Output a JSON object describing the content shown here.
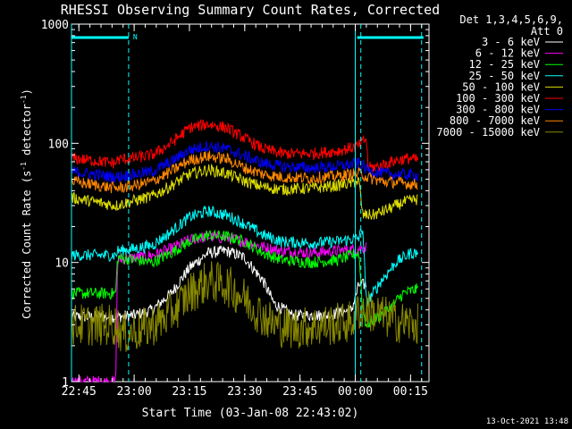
{
  "chart_data": {
    "type": "line",
    "title": "RHESSI Observing Summary Count Rates, Corrected",
    "xlabel": "Start Time (03-Jan-08 22:43:02)",
    "ylabel": "Corrected Count Rate (s⁻¹ detector⁻¹)",
    "ylabel_parts": [
      "Corrected Count Rate (s",
      "-1",
      " detector",
      "-1",
      ")"
    ],
    "yscale": "log",
    "ylim": [
      1,
      1000
    ],
    "xlim_minutes": [
      0,
      97
    ],
    "x_ticks": [
      {
        "label": "22:45",
        "min": 2
      },
      {
        "label": "23:00",
        "min": 17
      },
      {
        "label": "23:15",
        "min": 32
      },
      {
        "label": "23:30",
        "min": 47
      },
      {
        "label": "23:45",
        "min": 62
      },
      {
        "label": "00:00",
        "min": 77
      },
      {
        "label": "00:15",
        "min": 92
      }
    ],
    "y_ticks": [
      {
        "label": "1",
        "v": 1
      },
      {
        "label": "10",
        "v": 10
      },
      {
        "label": "100",
        "v": 100
      },
      {
        "label": "1000",
        "v": 1000
      }
    ],
    "legend_header": [
      "Det 1,3,4,5,6,9,",
      "Att 0"
    ],
    "series": [
      {
        "name": "3 - 6 keV",
        "color": "#ffffff",
        "points": [
          [
            0,
            3.5
          ],
          [
            12,
            3.5
          ],
          [
            17,
            3.6
          ],
          [
            22,
            4
          ],
          [
            27,
            5.5
          ],
          [
            32,
            9
          ],
          [
            37,
            12
          ],
          [
            42,
            12.5
          ],
          [
            47,
            11
          ],
          [
            52,
            7
          ],
          [
            55,
            4.5
          ],
          [
            60,
            3.6
          ],
          [
            70,
            3.6
          ],
          [
            76,
            4
          ],
          [
            78,
            6.5
          ],
          [
            80,
            6.5
          ]
        ]
      },
      {
        "name": "6 - 12 keV",
        "color": "#ff00ff",
        "points": [
          [
            0,
            1
          ],
          [
            12,
            1
          ],
          [
            12.5,
            10.5
          ],
          [
            17,
            11
          ],
          [
            22,
            11.5
          ],
          [
            27,
            13
          ],
          [
            32,
            15.5
          ],
          [
            37,
            16.5
          ],
          [
            42,
            16
          ],
          [
            47,
            15
          ],
          [
            52,
            13.5
          ],
          [
            57,
            12.5
          ],
          [
            65,
            12
          ],
          [
            72,
            12.5
          ],
          [
            78,
            13
          ],
          [
            80,
            13.5
          ]
        ]
      },
      {
        "name": "12 - 25 keV",
        "color": "#00ff00",
        "points": [
          [
            0,
            5.5
          ],
          [
            12,
            5.5
          ],
          [
            12.5,
            11
          ],
          [
            17,
            10.5
          ],
          [
            22,
            10
          ],
          [
            27,
            12
          ],
          [
            32,
            15
          ],
          [
            37,
            17
          ],
          [
            42,
            16.5
          ],
          [
            47,
            15
          ],
          [
            52,
            12
          ],
          [
            57,
            10.5
          ],
          [
            65,
            10
          ],
          [
            72,
            10.5
          ],
          [
            78,
            12
          ],
          [
            79,
            4
          ],
          [
            80,
            3
          ],
          [
            86,
            4
          ],
          [
            90,
            5.5
          ],
          [
            94,
            6
          ]
        ]
      },
      {
        "name": "25 - 50 keV",
        "color": "#00ffff",
        "points": [
          [
            0,
            11.5
          ],
          [
            12,
            11.5
          ],
          [
            12.5,
            12.5
          ],
          [
            17,
            13
          ],
          [
            22,
            14
          ],
          [
            27,
            18
          ],
          [
            32,
            24
          ],
          [
            37,
            27
          ],
          [
            42,
            25
          ],
          [
            47,
            21
          ],
          [
            52,
            17
          ],
          [
            57,
            15
          ],
          [
            65,
            14.5
          ],
          [
            72,
            15
          ],
          [
            78,
            16
          ],
          [
            79,
            20
          ],
          [
            80,
            4.5
          ],
          [
            84,
            7
          ],
          [
            88,
            10
          ],
          [
            92,
            12
          ],
          [
            94,
            12
          ]
        ]
      },
      {
        "name": "50 - 100 keV",
        "color": "#dddd00",
        "points": [
          [
            0,
            35
          ],
          [
            12,
            30
          ],
          [
            17,
            33
          ],
          [
            22,
            36
          ],
          [
            27,
            44
          ],
          [
            32,
            55
          ],
          [
            37,
            60
          ],
          [
            42,
            56
          ],
          [
            47,
            48
          ],
          [
            52,
            43
          ],
          [
            57,
            41
          ],
          [
            65,
            42
          ],
          [
            72,
            44
          ],
          [
            78,
            48
          ],
          [
            79,
            25
          ],
          [
            82,
            25
          ],
          [
            86,
            28
          ],
          [
            90,
            32
          ],
          [
            94,
            34
          ]
        ]
      },
      {
        "name": "100 - 300 keV",
        "color": "#ff0000",
        "points": [
          [
            0,
            75
          ],
          [
            12,
            68
          ],
          [
            12.5,
            73
          ],
          [
            17,
            75
          ],
          [
            22,
            80
          ],
          [
            27,
            100
          ],
          [
            32,
            135
          ],
          [
            37,
            145
          ],
          [
            42,
            135
          ],
          [
            47,
            110
          ],
          [
            52,
            90
          ],
          [
            57,
            82
          ],
          [
            65,
            82
          ],
          [
            72,
            86
          ],
          [
            78,
            95
          ],
          [
            80,
            110
          ],
          [
            80.5,
            62
          ],
          [
            84,
            65
          ],
          [
            88,
            72
          ],
          [
            92,
            75
          ],
          [
            94,
            72
          ]
        ]
      },
      {
        "name": "300 - 800 keV",
        "color": "#0000ff",
        "points": [
          [
            0,
            58
          ],
          [
            12,
            52
          ],
          [
            17,
            55
          ],
          [
            22,
            58
          ],
          [
            27,
            70
          ],
          [
            32,
            88
          ],
          [
            37,
            95
          ],
          [
            42,
            90
          ],
          [
            47,
            78
          ],
          [
            52,
            68
          ],
          [
            57,
            64
          ],
          [
            65,
            62
          ],
          [
            72,
            64
          ],
          [
            78,
            68
          ],
          [
            79,
            66
          ],
          [
            80,
            60
          ],
          [
            84,
            56
          ],
          [
            88,
            55
          ],
          [
            94,
            54
          ]
        ]
      },
      {
        "name": "800 - 7000 keV",
        "color": "#ff8800",
        "points": [
          [
            0,
            48
          ],
          [
            12,
            42
          ],
          [
            17,
            44
          ],
          [
            22,
            48
          ],
          [
            27,
            58
          ],
          [
            32,
            72
          ],
          [
            37,
            78
          ],
          [
            42,
            74
          ],
          [
            47,
            62
          ],
          [
            52,
            55
          ],
          [
            57,
            52
          ],
          [
            65,
            51
          ],
          [
            72,
            53
          ],
          [
            78,
            56
          ],
          [
            79,
            55
          ],
          [
            80,
            52
          ],
          [
            84,
            48
          ],
          [
            88,
            47
          ],
          [
            94,
            45
          ]
        ]
      },
      {
        "name": "7000 - 15000 keV",
        "color": "#888800",
        "points": [
          [
            0,
            3
          ],
          [
            12,
            3
          ],
          [
            14,
            2.5
          ],
          [
            20,
            2.8
          ],
          [
            24,
            3.2
          ],
          [
            28,
            4
          ],
          [
            32,
            5.5
          ],
          [
            37,
            7
          ],
          [
            42,
            6.5
          ],
          [
            47,
            5
          ],
          [
            50,
            4
          ],
          [
            55,
            3
          ],
          [
            60,
            2.8
          ],
          [
            70,
            3
          ],
          [
            76,
            3.2
          ],
          [
            78,
            4
          ],
          [
            80,
            4
          ],
          [
            85,
            3.5
          ],
          [
            88,
            3.2
          ],
          [
            94,
            3
          ]
        ]
      }
    ],
    "cursor_lines_solid_min": [
      0,
      77
    ],
    "cursor_lines_dashed_min": [
      15.5,
      78.5,
      95
    ],
    "segment_bars": [
      [
        0,
        15.5
      ],
      [
        77.5,
        95.5
      ]
    ],
    "segment_flag": "N"
  },
  "timestamp": "13-Oct-2021 13:48"
}
